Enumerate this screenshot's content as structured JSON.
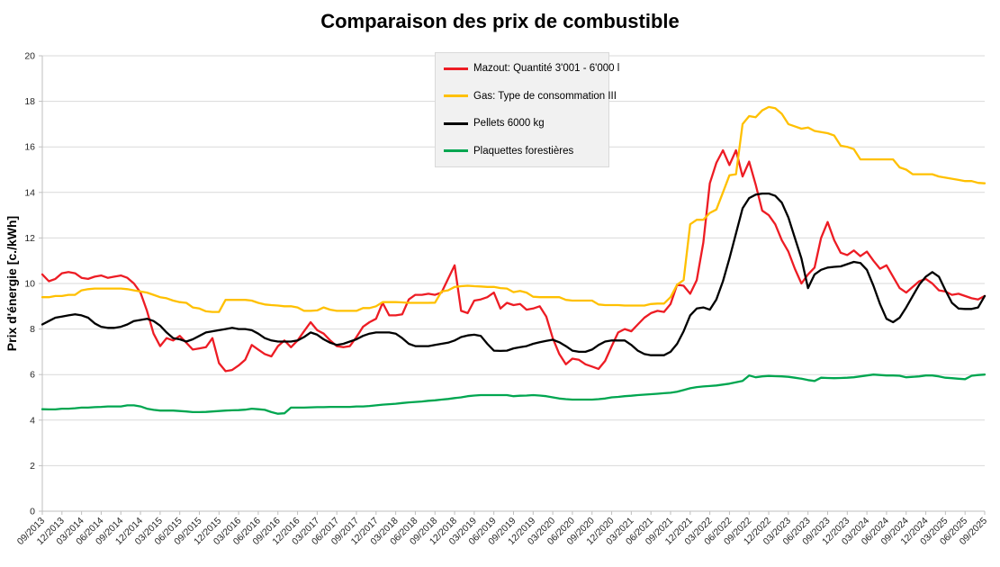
{
  "chart_data": {
    "type": "line",
    "title": "Comparaison des prix de combustible",
    "ylabel": "Prix d'énergie [c./kWh]",
    "xlabel": "",
    "ylim": [
      0,
      20
    ],
    "y_ticks": [
      0,
      2,
      4,
      6,
      8,
      10,
      12,
      14,
      16,
      18,
      20
    ],
    "grid": true,
    "legend_position": "top-center-inside",
    "interval": "monthly",
    "x_start": "09/2013",
    "x_end": "09/2025",
    "points_per_tick": 3,
    "x_tick_labels": [
      "09/2013",
      "12/2013",
      "03/2014",
      "06/2014",
      "09/2014",
      "12/2014",
      "03/2015",
      "06/2015",
      "09/2015",
      "12/2015",
      "03/2016",
      "06/2016",
      "09/2016",
      "12/2016",
      "03/2017",
      "06/2017",
      "09/2017",
      "12/2017",
      "03/2018",
      "06/2018",
      "09/2018",
      "12/2018",
      "03/2019",
      "06/2019",
      "09/2019",
      "12/2019",
      "03/2020",
      "06/2020",
      "09/2020",
      "12/2020",
      "03/2021",
      "06/2021",
      "09/2021",
      "12/2021",
      "03/2022",
      "06/2022",
      "09/2022",
      "12/2022",
      "03/2023",
      "06/2023",
      "09/2023",
      "12/2023",
      "03/2024",
      "06/2024",
      "09/2024",
      "12/2024",
      "03/2025",
      "06/2025",
      "09/2025"
    ],
    "colors": {
      "grid": "#d9d9d9",
      "axis": "#bfbfbf",
      "tick_text": "#262626",
      "legend_bg": "#f1f1f1"
    },
    "series": [
      {
        "id": "mazout",
        "name": "Mazout: Quantité 3'001 - 6'000 l",
        "color": "#ed1c24",
        "values": [
          10.4,
          10.1,
          10.2,
          10.45,
          10.5,
          10.45,
          10.25,
          10.2,
          10.3,
          10.35,
          10.25,
          10.3,
          10.35,
          10.25,
          10.0,
          9.6,
          8.8,
          7.8,
          7.25,
          7.6,
          7.5,
          7.7,
          7.4,
          7.1,
          7.15,
          7.2,
          7.6,
          6.5,
          6.15,
          6.2,
          6.4,
          6.65,
          7.3,
          7.1,
          6.9,
          6.8,
          7.25,
          7.5,
          7.2,
          7.5,
          7.9,
          8.3,
          7.95,
          7.8,
          7.5,
          7.25,
          7.2,
          7.25,
          7.65,
          8.1,
          8.3,
          8.45,
          9.15,
          8.6,
          8.6,
          8.65,
          9.3,
          9.5,
          9.5,
          9.55,
          9.5,
          9.6,
          10.2,
          10.8,
          8.8,
          8.7,
          9.25,
          9.3,
          9.4,
          9.6,
          8.9,
          9.15,
          9.05,
          9.1,
          8.85,
          8.9,
          9.0,
          8.55,
          7.6,
          6.9,
          6.45,
          6.7,
          6.65,
          6.45,
          6.35,
          6.25,
          6.6,
          7.25,
          7.85,
          8.0,
          7.9,
          8.2,
          8.5,
          8.7,
          8.8,
          8.75,
          9.1,
          9.95,
          9.9,
          9.55,
          10.15,
          11.8,
          14.4,
          15.3,
          15.85,
          15.2,
          15.85,
          14.7,
          15.35,
          14.35,
          13.2,
          13.0,
          12.6,
          11.9,
          11.4,
          10.65,
          10.0,
          10.4,
          10.7,
          12.0,
          12.7,
          11.9,
          11.35,
          11.25,
          11.45,
          11.2,
          11.4,
          11.0,
          10.65,
          10.8,
          10.3,
          9.8,
          9.6,
          9.85,
          10.1,
          10.2,
          10.0,
          9.7,
          9.65,
          9.5,
          9.55,
          9.45,
          9.35,
          9.3,
          9.45
        ]
      },
      {
        "id": "gas",
        "name": "Gas: Type de consommation III",
        "color": "#ffc000",
        "values": [
          9.4,
          9.4,
          9.45,
          9.45,
          9.5,
          9.5,
          9.7,
          9.75,
          9.78,
          9.78,
          9.78,
          9.78,
          9.78,
          9.75,
          9.7,
          9.65,
          9.6,
          9.5,
          9.4,
          9.35,
          9.25,
          9.18,
          9.15,
          8.95,
          8.9,
          8.78,
          8.75,
          8.75,
          9.28,
          9.28,
          9.28,
          9.28,
          9.25,
          9.15,
          9.08,
          9.05,
          9.03,
          9.0,
          9.0,
          8.95,
          8.8,
          8.8,
          8.82,
          8.95,
          8.85,
          8.8,
          8.8,
          8.8,
          8.8,
          8.92,
          8.92,
          9.0,
          9.18,
          9.18,
          9.18,
          9.17,
          9.15,
          9.15,
          9.15,
          9.15,
          9.16,
          9.65,
          9.7,
          9.85,
          9.88,
          9.9,
          9.88,
          9.87,
          9.85,
          9.85,
          9.8,
          9.78,
          9.62,
          9.67,
          9.6,
          9.42,
          9.4,
          9.4,
          9.4,
          9.4,
          9.28,
          9.25,
          9.25,
          9.25,
          9.25,
          9.08,
          9.05,
          9.05,
          9.05,
          9.03,
          9.03,
          9.03,
          9.03,
          9.1,
          9.12,
          9.12,
          9.4,
          9.95,
          10.15,
          12.6,
          12.8,
          12.8,
          13.1,
          13.25,
          14.0,
          14.75,
          14.8,
          17.0,
          17.35,
          17.3,
          17.6,
          17.75,
          17.7,
          17.45,
          17.0,
          16.9,
          16.8,
          16.85,
          16.7,
          16.65,
          16.6,
          16.5,
          16.05,
          16.0,
          15.9,
          15.45,
          15.45,
          15.45,
          15.45,
          15.45,
          15.45,
          15.1,
          15.0,
          14.8,
          14.8,
          14.8,
          14.8,
          14.7,
          14.65,
          14.6,
          14.55,
          14.5,
          14.5,
          14.42,
          14.4
        ]
      },
      {
        "id": "pellets",
        "name": "Pellets 6000 kg",
        "color": "#000000",
        "values": [
          8.2,
          8.35,
          8.5,
          8.55,
          8.6,
          8.65,
          8.6,
          8.5,
          8.25,
          8.1,
          8.05,
          8.05,
          8.1,
          8.2,
          8.35,
          8.4,
          8.45,
          8.35,
          8.15,
          7.85,
          7.6,
          7.55,
          7.45,
          7.55,
          7.7,
          7.85,
          7.9,
          7.95,
          8.0,
          8.05,
          8.0,
          8.0,
          7.95,
          7.8,
          7.6,
          7.5,
          7.45,
          7.45,
          7.45,
          7.5,
          7.65,
          7.85,
          7.75,
          7.55,
          7.4,
          7.3,
          7.35,
          7.45,
          7.55,
          7.7,
          7.8,
          7.85,
          7.85,
          7.85,
          7.8,
          7.6,
          7.35,
          7.25,
          7.25,
          7.25,
          7.3,
          7.35,
          7.4,
          7.5,
          7.65,
          7.72,
          7.75,
          7.7,
          7.35,
          7.05,
          7.04,
          7.05,
          7.15,
          7.2,
          7.25,
          7.35,
          7.42,
          7.48,
          7.53,
          7.42,
          7.25,
          7.05,
          7.0,
          7.0,
          7.1,
          7.3,
          7.45,
          7.5,
          7.5,
          7.5,
          7.3,
          7.05,
          6.9,
          6.85,
          6.85,
          6.85,
          7.0,
          7.35,
          7.9,
          8.6,
          8.9,
          8.95,
          8.85,
          9.3,
          10.1,
          11.1,
          12.2,
          13.3,
          13.75,
          13.9,
          13.95,
          13.95,
          13.85,
          13.55,
          12.9,
          12.0,
          11.1,
          9.8,
          10.4,
          10.6,
          10.7,
          10.73,
          10.75,
          10.85,
          10.95,
          10.9,
          10.6,
          9.9,
          9.1,
          8.45,
          8.3,
          8.5,
          8.95,
          9.45,
          9.95,
          10.3,
          10.5,
          10.3,
          9.7,
          9.15,
          8.9,
          8.88,
          8.88,
          8.95,
          9.45
        ]
      },
      {
        "id": "plaquettes",
        "name": "Plaquettes forestières",
        "color": "#00a650",
        "values": [
          4.48,
          4.47,
          4.47,
          4.5,
          4.5,
          4.52,
          4.55,
          4.55,
          4.57,
          4.58,
          4.6,
          4.6,
          4.6,
          4.65,
          4.65,
          4.6,
          4.5,
          4.45,
          4.42,
          4.42,
          4.42,
          4.4,
          4.38,
          4.35,
          4.35,
          4.36,
          4.38,
          4.4,
          4.42,
          4.43,
          4.44,
          4.46,
          4.5,
          4.48,
          4.45,
          4.35,
          4.28,
          4.3,
          4.55,
          4.55,
          4.55,
          4.56,
          4.57,
          4.57,
          4.58,
          4.58,
          4.58,
          4.58,
          4.6,
          4.6,
          4.62,
          4.65,
          4.68,
          4.7,
          4.72,
          4.75,
          4.78,
          4.8,
          4.82,
          4.85,
          4.87,
          4.9,
          4.93,
          4.97,
          5.0,
          5.05,
          5.08,
          5.1,
          5.1,
          5.1,
          5.1,
          5.1,
          5.05,
          5.07,
          5.08,
          5.1,
          5.08,
          5.05,
          5.0,
          4.95,
          4.92,
          4.9,
          4.9,
          4.9,
          4.9,
          4.92,
          4.95,
          5.0,
          5.02,
          5.05,
          5.07,
          5.1,
          5.12,
          5.14,
          5.16,
          5.18,
          5.2,
          5.25,
          5.32,
          5.4,
          5.45,
          5.48,
          5.5,
          5.52,
          5.56,
          5.6,
          5.66,
          5.72,
          5.96,
          5.88,
          5.92,
          5.94,
          5.93,
          5.92,
          5.9,
          5.86,
          5.82,
          5.76,
          5.72,
          5.86,
          5.85,
          5.84,
          5.85,
          5.86,
          5.88,
          5.92,
          5.96,
          6.0,
          5.98,
          5.96,
          5.96,
          5.95,
          5.88,
          5.9,
          5.92,
          5.96,
          5.96,
          5.92,
          5.86,
          5.84,
          5.82,
          5.8,
          5.95,
          5.98,
          6.0
        ]
      }
    ]
  }
}
